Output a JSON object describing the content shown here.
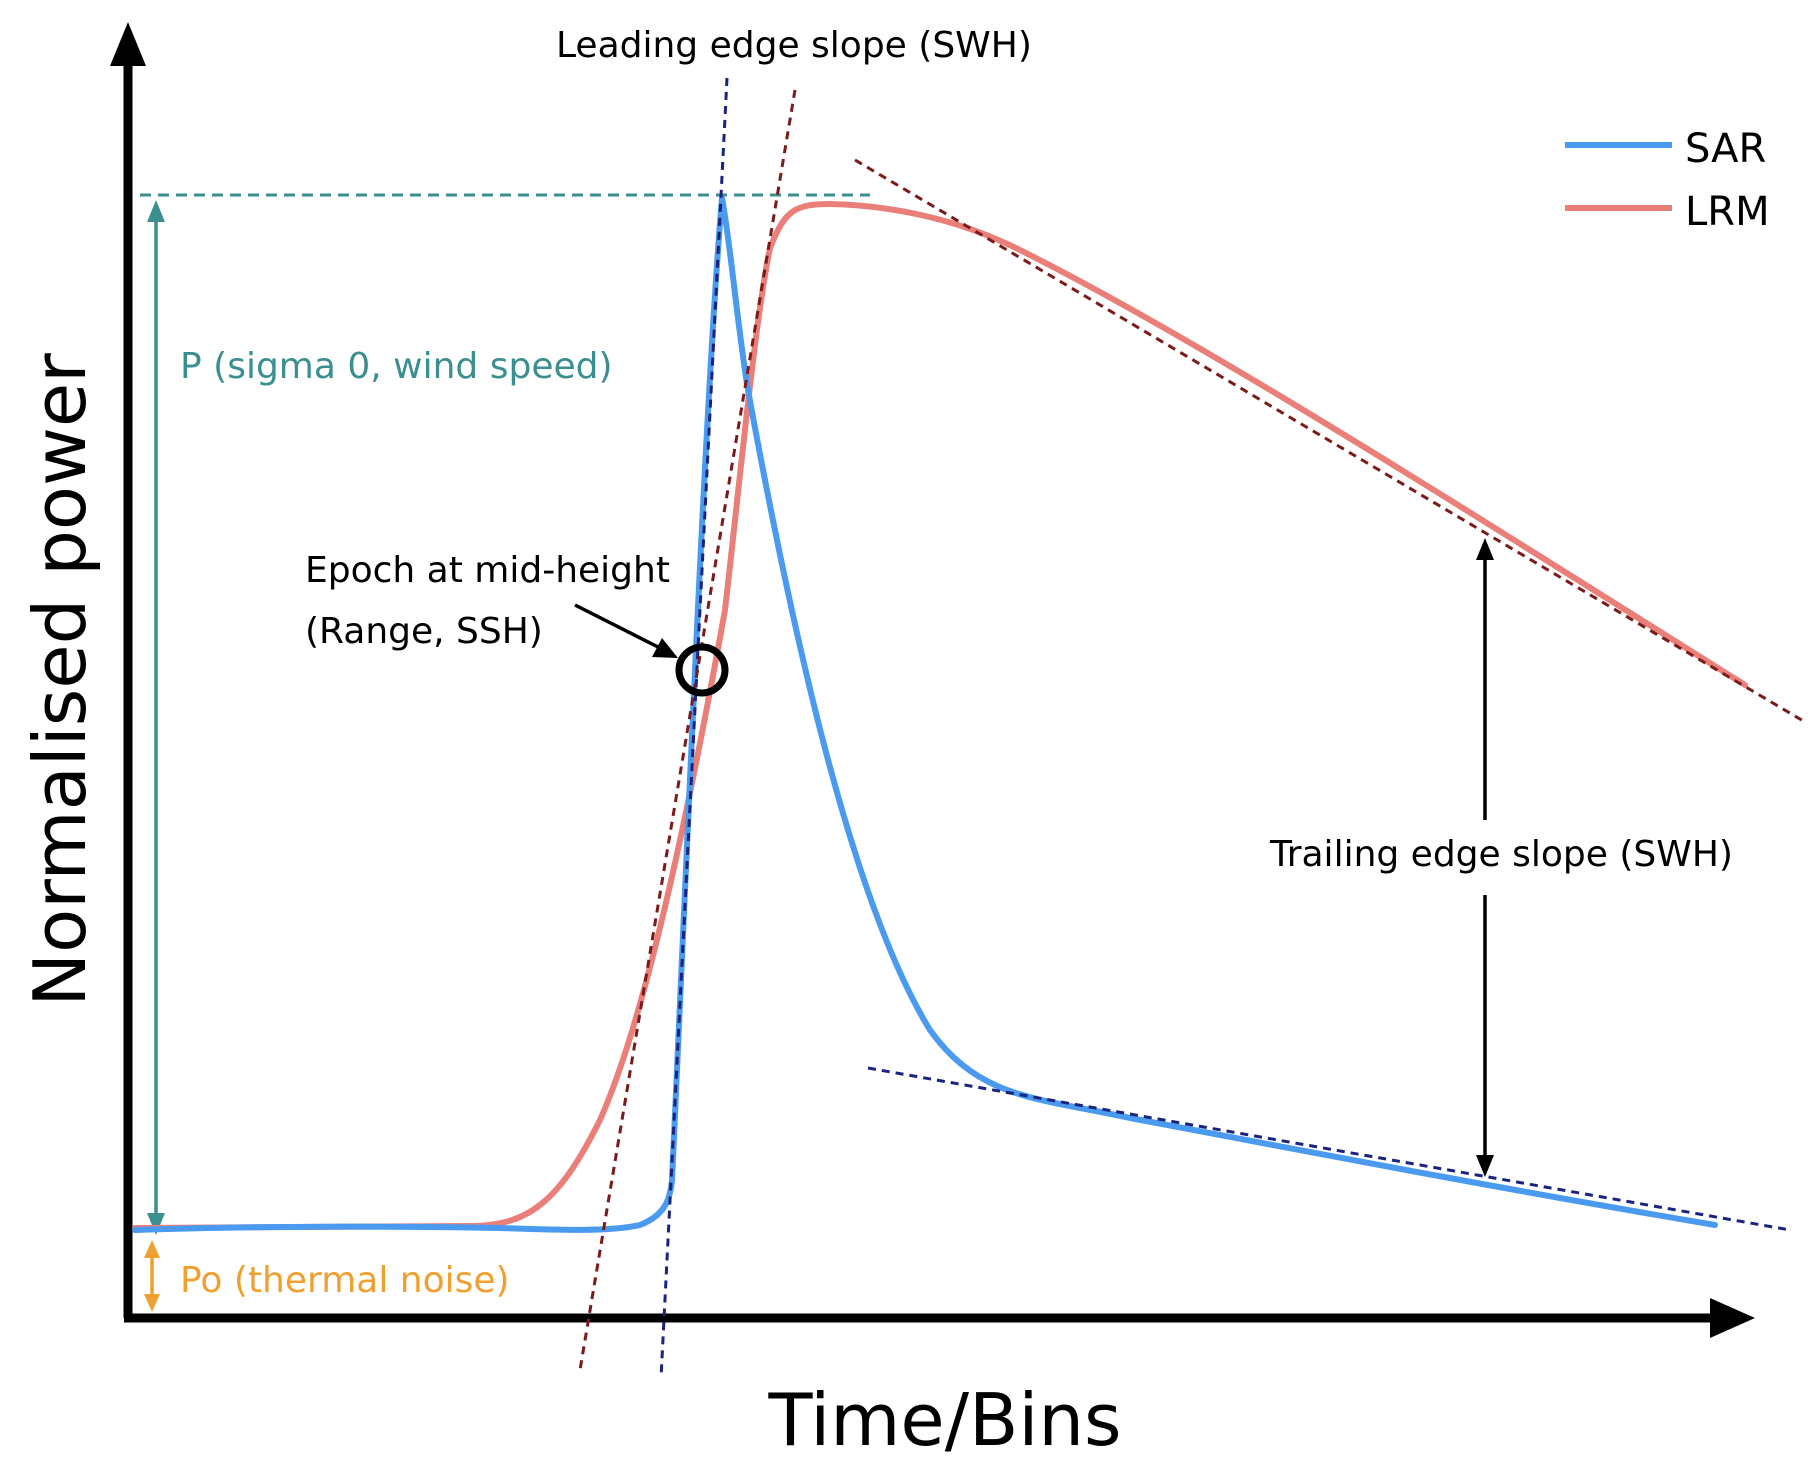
{
  "labels": {
    "y_axis": "Normalised power",
    "x_axis": "Time/Bins",
    "leading_edge": "Leading edge slope (SWH)",
    "amplitude": "P (sigma 0, wind speed)",
    "noise": "Po (thermal noise)",
    "epoch_line1": "Epoch at mid-height",
    "epoch_line2": "(Range, SSH)",
    "trailing_edge": "Trailing edge slope (SWH)"
  },
  "legend": [
    {
      "name": "SAR",
      "color": "#4a9af0"
    },
    {
      "name": "LRM",
      "color": "#ea7f7a"
    }
  ],
  "colors": {
    "sar": "#4a9af0",
    "lrm": "#ea7f7a",
    "amplitude": "#3b8f8f",
    "noise": "#f0a030",
    "sar_fit": "#1a237e",
    "lrm_fit": "#7b1a1a",
    "axis": "#000000"
  }
}
